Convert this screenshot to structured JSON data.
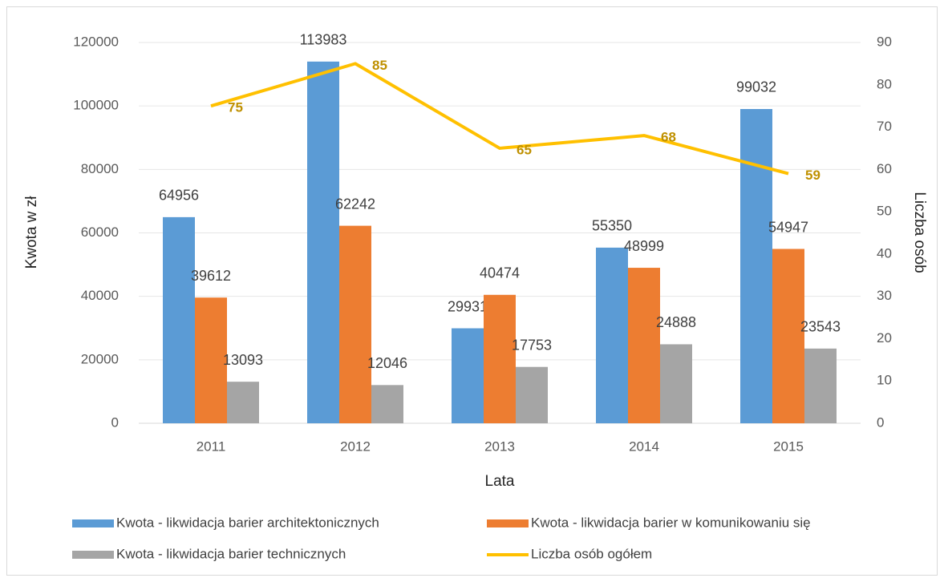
{
  "chart_data": {
    "type": "bar",
    "categories": [
      "2011",
      "2012",
      "2013",
      "2014",
      "2015"
    ],
    "x_label": "Lata",
    "y_label": "Kwota w zł",
    "y2_label": "Liczba osób",
    "ylim": [
      0,
      120000
    ],
    "yticks": [
      0,
      20000,
      40000,
      60000,
      80000,
      100000,
      120000
    ],
    "y2lim": [
      0,
      90
    ],
    "y2ticks": [
      0,
      10,
      20,
      30,
      40,
      50,
      60,
      70,
      80,
      90
    ],
    "grid": true,
    "series": [
      {
        "name": "Kwota - likwidacja barier architektonicznych",
        "color": "#5b9bd5",
        "values": [
          64956,
          113983,
          29931,
          55350,
          99032
        ]
      },
      {
        "name": "Kwota - likwidacja barier w komunikowaniu się",
        "color": "#ed7d31",
        "values": [
          39612,
          62242,
          40474,
          48999,
          54947
        ]
      },
      {
        "name": "Kwota - likwidacja barier technicznych",
        "color": "#a5a5a5",
        "values": [
          13093,
          12046,
          17753,
          24888,
          23543
        ]
      },
      {
        "name": "Liczba osób ogółem",
        "color": "#ffc000",
        "type": "line",
        "axis": "y2",
        "values": [
          75,
          85,
          65,
          68,
          59
        ]
      }
    ]
  }
}
